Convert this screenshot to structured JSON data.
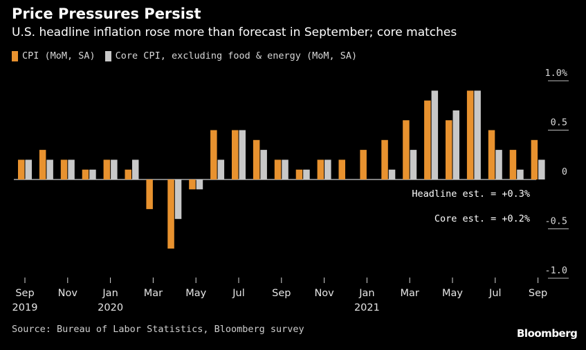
{
  "header": {
    "title": "Price Pressures Persist",
    "subtitle": "U.S. headline inflation rose more than forecast in September; core matches"
  },
  "legend": [
    {
      "label": "CPI (MoM, SA)",
      "color": "#e8922f"
    },
    {
      "label": "Core CPI, excluding food & energy (MoM, SA)",
      "color": "#c8c8c8"
    }
  ],
  "chart_data": {
    "type": "bar",
    "title": "Price Pressures Persist",
    "subtitle": "U.S. headline inflation rose more than forecast in September; core matches",
    "categories": [
      "Sep 2019",
      "Oct 2019",
      "Nov 2019",
      "Dec 2019",
      "Jan 2020",
      "Feb 2020",
      "Mar 2020",
      "Apr 2020",
      "May 2020",
      "Jun 2020",
      "Jul 2020",
      "Aug 2020",
      "Sep 2020",
      "Oct 2020",
      "Nov 2020",
      "Dec 2020",
      "Jan 2021",
      "Feb 2021",
      "Mar 2021",
      "Apr 2021",
      "May 2021",
      "Jun 2021",
      "Jul 2021",
      "Aug 2021",
      "Sep 2021"
    ],
    "series": [
      {
        "name": "CPI (MoM, SA)",
        "color": "#e8922f",
        "values": [
          0.2,
          0.3,
          0.2,
          0.1,
          0.2,
          0.1,
          -0.3,
          -0.7,
          -0.1,
          0.5,
          0.5,
          0.4,
          0.2,
          0.1,
          0.2,
          0.2,
          0.3,
          0.4,
          0.6,
          0.8,
          0.6,
          0.9,
          0.5,
          0.3,
          0.4
        ]
      },
      {
        "name": "Core CPI, excluding food & energy (MoM, SA)",
        "color": "#c8c8c8",
        "values": [
          0.2,
          0.2,
          0.2,
          0.1,
          0.2,
          0.2,
          0.0,
          -0.4,
          -0.1,
          0.2,
          0.5,
          0.3,
          0.2,
          0.1,
          0.2,
          0.0,
          0.0,
          0.1,
          0.3,
          0.9,
          0.7,
          0.9,
          0.3,
          0.1,
          0.2
        ]
      }
    ],
    "x_tick_labels": [
      {
        "index": 0,
        "month": "Sep",
        "year": "2019"
      },
      {
        "index": 2,
        "month": "Nov",
        "year": ""
      },
      {
        "index": 4,
        "month": "Jan",
        "year": "2020"
      },
      {
        "index": 6,
        "month": "Mar",
        "year": ""
      },
      {
        "index": 8,
        "month": "May",
        "year": ""
      },
      {
        "index": 10,
        "month": "Jul",
        "year": ""
      },
      {
        "index": 12,
        "month": "Sep",
        "year": ""
      },
      {
        "index": 14,
        "month": "Nov",
        "year": ""
      },
      {
        "index": 16,
        "month": "Jan",
        "year": "2021"
      },
      {
        "index": 18,
        "month": "Mar",
        "year": ""
      },
      {
        "index": 20,
        "month": "May",
        "year": ""
      },
      {
        "index": 22,
        "month": "Jul",
        "year": ""
      },
      {
        "index": 24,
        "month": "Sep",
        "year": ""
      }
    ],
    "y_ticks": [
      {
        "value": 1.0,
        "label": "1.0%"
      },
      {
        "value": 0.5,
        "label": "0.5"
      },
      {
        "value": 0,
        "label": "0"
      },
      {
        "value": -0.5,
        "label": "-0.5"
      },
      {
        "value": -1.0,
        "label": "-1.0"
      }
    ],
    "ylim": [
      -1.0,
      1.0
    ],
    "annotations": [
      {
        "text": "Headline est. = +0.3%",
        "y": -0.14
      },
      {
        "text": "Core est. = +0.2%",
        "y": -0.39
      }
    ],
    "xlabel": "",
    "ylabel": ""
  },
  "footer": {
    "source": "Source: Bureau of Labor Statistics, Bloomberg survey",
    "brand": "Bloomberg"
  }
}
